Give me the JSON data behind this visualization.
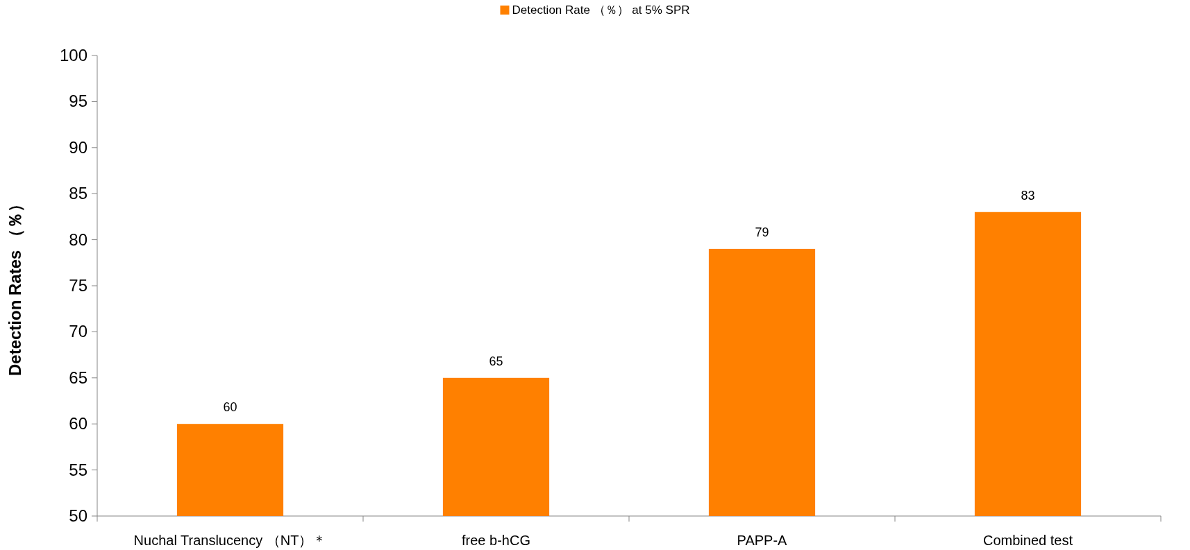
{
  "chart_data": {
    "type": "bar",
    "ylabel": "Detection Rates （％）",
    "categories": [
      "Nuchal Translucency （NT）＊",
      "free b-hCG",
      "PAPP-A",
      "Combined test"
    ],
    "series": [
      {
        "name": "Detection Rate （％） at 5% SPR",
        "color": "#ff8000",
        "values": [
          60,
          65,
          79,
          83
        ]
      }
    ],
    "ylim": [
      50,
      100
    ],
    "yticks": [
      50,
      55,
      60,
      65,
      70,
      75,
      80,
      85,
      90,
      95,
      100
    ],
    "data_labels": true,
    "legend": "top",
    "grid": false
  }
}
